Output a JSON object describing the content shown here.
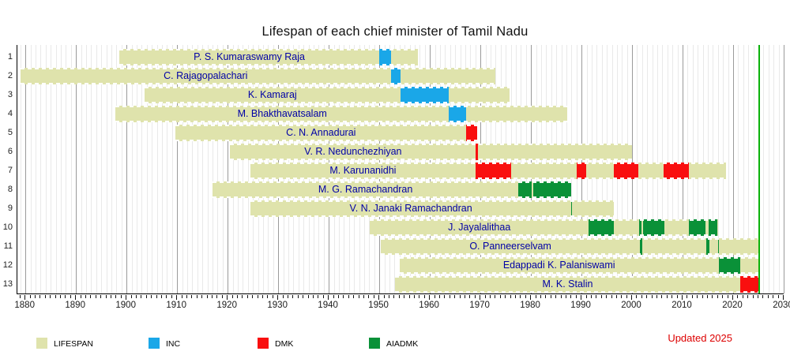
{
  "title": "Lifespan of each chief minister of Tamil Nadu",
  "updated_note": "Updated 2025",
  "colors": {
    "lifespan_bar": "#dfe3ac",
    "inc_blue": "#1aa7e8",
    "dmk_red": "#f90f0f",
    "aiadmk_green": "#0a9138",
    "today_line_green": "#0ab10a",
    "name_text_blue": "#0000a6",
    "updated_text_red": "#dd0000"
  },
  "legend": [
    {
      "label": "LIFESPAN",
      "party": "LIFESPAN"
    },
    {
      "label": "INC",
      "party": "INC"
    },
    {
      "label": "DMK",
      "party": "DMK"
    },
    {
      "label": "AIADMK",
      "party": "AIADMK"
    }
  ],
  "chart_data": {
    "type": "timeline",
    "unit": "year",
    "x_axis": {
      "min": 1878.4,
      "max": 2030,
      "tick_interval": 10,
      "minor_tick_interval": 1,
      "labels": [
        "1880",
        "1890",
        "1900",
        "1910",
        "1920",
        "1930",
        "1940",
        "1950",
        "1960",
        "1970",
        "1980",
        "1990",
        "2000",
        "2010",
        "2020",
        "2030"
      ]
    },
    "today_marker_year": 2025.0,
    "party_colors": {
      "LIFESPAN": "#dfe3ac",
      "INC": "#1aa7e8",
      "DMK": "#f90f0f",
      "AIADMK": "#0a9138"
    },
    "ministers": [
      {
        "row": 1,
        "name": "P. S. Kumaraswamy Raja",
        "born": 1898.6,
        "died": 1957.6,
        "terms": [
          {
            "party": "INC",
            "start": 1950.0,
            "end": 1952.3
          }
        ]
      },
      {
        "row": 2,
        "name": "C. Rajagopalachari",
        "born": 1879.0,
        "died": 1973.0,
        "terms": [
          {
            "party": "INC",
            "start": 1952.3,
            "end": 1954.2
          }
        ]
      },
      {
        "row": 3,
        "name": "K. Kamaraj",
        "born": 1903.5,
        "died": 1975.8,
        "terms": [
          {
            "party": "INC",
            "start": 1954.2,
            "end": 1963.8
          }
        ]
      },
      {
        "row": 4,
        "name": "M. Bhakthavatsalam",
        "born": 1897.8,
        "died": 1987.2,
        "terms": [
          {
            "party": "INC",
            "start": 1963.8,
            "end": 1967.2
          }
        ]
      },
      {
        "row": 5,
        "name": "C. N. Annadurai",
        "born": 1909.7,
        "died": 1969.4,
        "terms": [
          {
            "party": "DMK",
            "start": 1967.2,
            "end": 1969.4
          }
        ]
      },
      {
        "row": 6,
        "name": "V. R. Nedunchezhiyan",
        "born": 1920.5,
        "died": 2000.05,
        "terms": [
          {
            "party": "DMK",
            "start": 1969.1,
            "end": 1969.45
          }
        ]
      },
      {
        "row": 7,
        "name": "M. Karunanidhi",
        "born": 1924.45,
        "died": 2018.6,
        "terms": [
          {
            "party": "DMK",
            "start": 1969.1,
            "end": 1976.1
          },
          {
            "party": "DMK",
            "start": 1989.0,
            "end": 1991.0
          },
          {
            "party": "DMK",
            "start": 1996.35,
            "end": 2001.2
          },
          {
            "party": "DMK",
            "start": 2006.2,
            "end": 2011.2
          }
        ]
      },
      {
        "row": 8,
        "name": "M. G. Ramachandran",
        "born": 1917.0,
        "died": 1988.0,
        "terms": [
          {
            "party": "AIADMK",
            "start": 1977.5,
            "end": 1980.1
          },
          {
            "party": "AIADMK",
            "start": 1980.4,
            "end": 1988.0
          }
        ]
      },
      {
        "row": 9,
        "name": "V. N. Janaki Ramachandran",
        "born": 1924.5,
        "died": 1996.4,
        "terms": [
          {
            "party": "AIADMK",
            "start": 1988.0,
            "end": 1988.1
          }
        ]
      },
      {
        "row": 10,
        "name": "J. Jayalalithaa",
        "born": 1948.1,
        "died": 2016.95,
        "terms": [
          {
            "party": "AIADMK",
            "start": 1991.45,
            "end": 1996.4
          },
          {
            "party": "AIADMK",
            "start": 2001.4,
            "end": 2001.9
          },
          {
            "party": "AIADMK",
            "start": 2002.2,
            "end": 2006.4
          },
          {
            "party": "AIADMK",
            "start": 2011.3,
            "end": 2014.5
          },
          {
            "party": "AIADMK",
            "start": 2015.2,
            "end": 2016.95
          }
        ]
      },
      {
        "row": 11,
        "name": "O. Panneerselvam",
        "born": 1950.3,
        "died": null,
        "terms": [
          {
            "party": "AIADMK",
            "start": 2001.6,
            "end": 2002.1
          },
          {
            "party": "AIADMK",
            "start": 2014.7,
            "end": 2015.35
          },
          {
            "party": "AIADMK",
            "start": 2016.95,
            "end": 2017.15
          }
        ]
      },
      {
        "row": 12,
        "name": "Edappadi K. Palaniswami",
        "born": 1954.0,
        "died": null,
        "terms": [
          {
            "party": "AIADMK",
            "start": 2017.15,
            "end": 2021.35
          }
        ]
      },
      {
        "row": 13,
        "name": "M. K. Stalin",
        "born": 1953.15,
        "died": null,
        "terms": [
          {
            "party": "DMK",
            "start": 2021.35,
            "end": null
          }
        ]
      }
    ]
  }
}
